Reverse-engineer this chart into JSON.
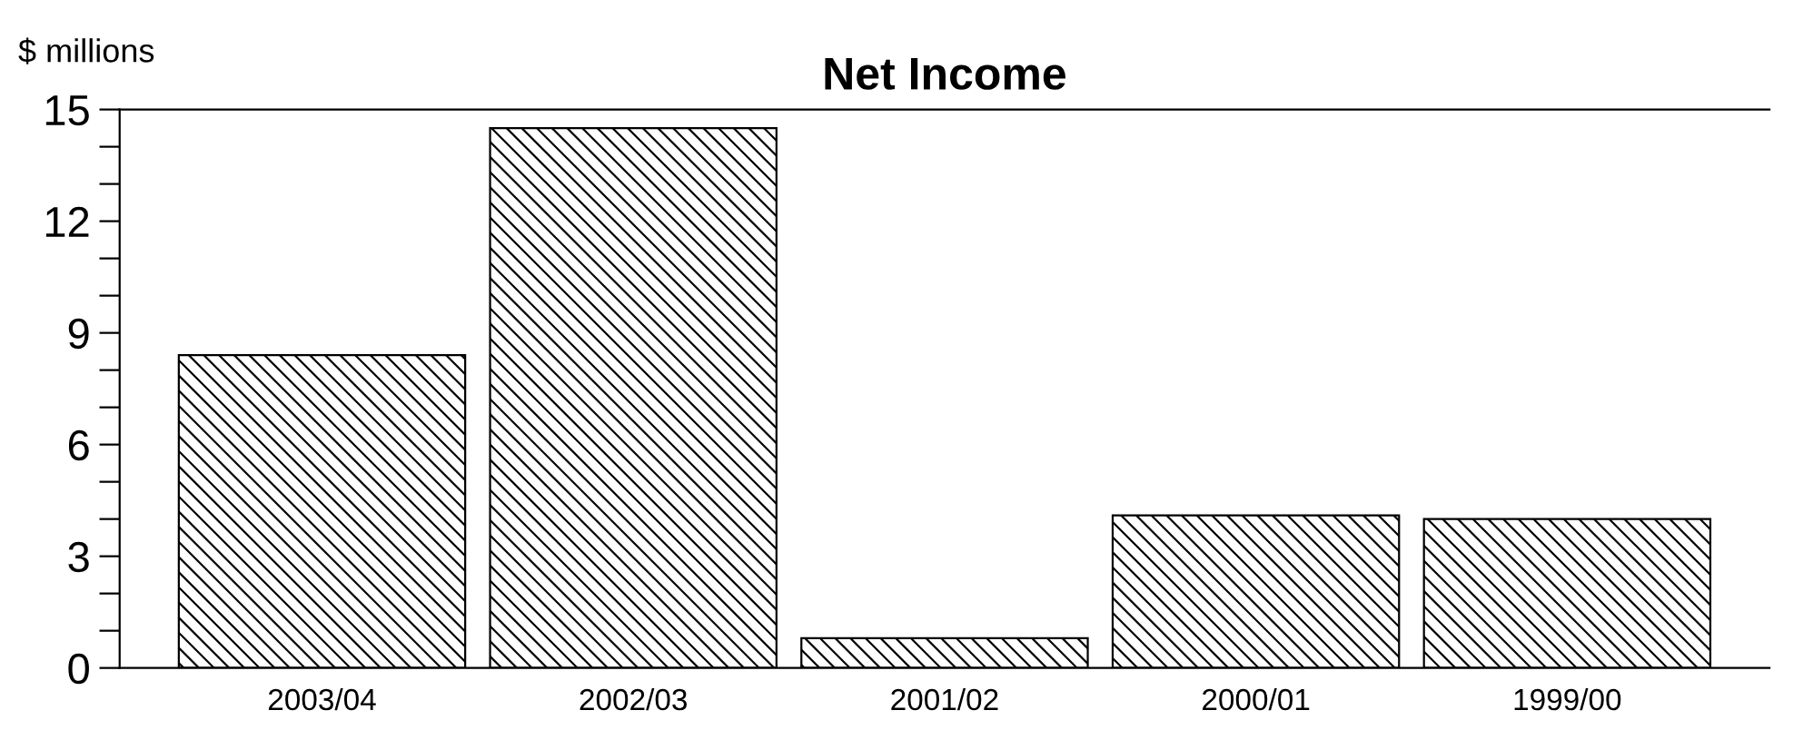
{
  "chart_data": {
    "type": "bar",
    "title": "Net Income",
    "ylabel": "$ millions",
    "categories": [
      "2003/04",
      "2002/03",
      "2001/02",
      "2000/01",
      "1999/00"
    ],
    "values": [
      8.4,
      14.5,
      0.8,
      4.1,
      4.0
    ],
    "color": "#000000",
    "ylim": [
      0,
      15
    ],
    "yticks": [
      0,
      {
        "value": 1,
        "label": null
      },
      {
        "value": 2,
        "label": null
      },
      3,
      {
        "value": 4,
        "label": null
      },
      {
        "value": 5,
        "label": null
      },
      6,
      {
        "value": 7,
        "label": null
      },
      {
        "value": 8,
        "label": null
      },
      9,
      {
        "value": 10,
        "label": null
      },
      {
        "value": 11,
        "label": null
      },
      12,
      {
        "value": 13,
        "label": null
      },
      {
        "value": 14,
        "label": null
      },
      15
    ],
    "grid": false,
    "legend": false
  }
}
